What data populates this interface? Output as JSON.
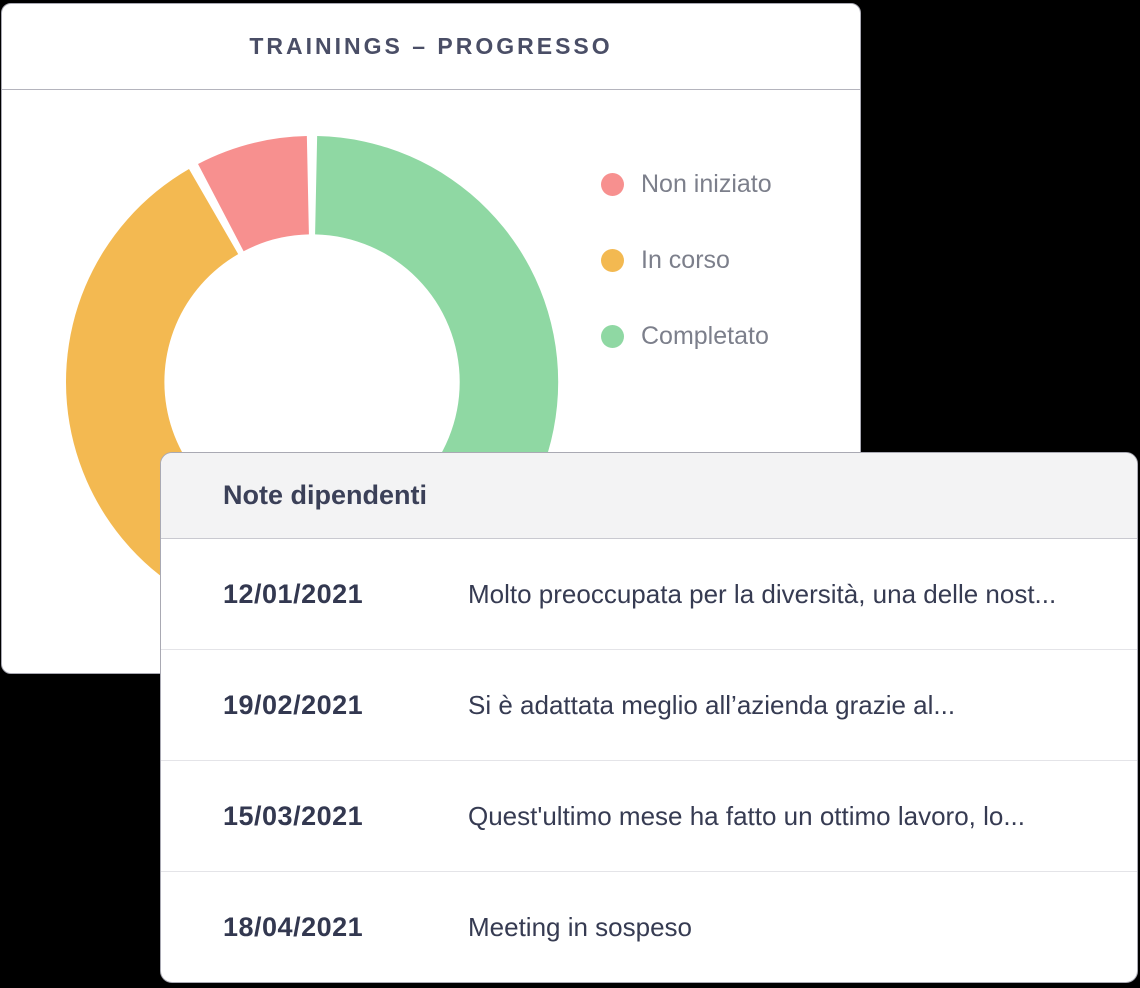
{
  "background_color": "#000000",
  "trainings_card": {
    "title": "TRAININGS – PROGRESSO"
  },
  "chart_data": {
    "type": "pie",
    "subtype": "donut",
    "title": "TRAININGS – PROGRESSO",
    "categories": [
      "Non iniziato",
      "In corso",
      "Completato"
    ],
    "values": [
      8,
      42,
      50
    ],
    "unit": "percent_estimated",
    "colors": [
      "#f7908f",
      "#f3b951",
      "#8fd8a3"
    ],
    "draw_order_clockwise_from_top": [
      2,
      1,
      0
    ],
    "start_angle_deg": 0,
    "segment_gap_deg": 2.4,
    "inner_radius_ratio": 0.6,
    "legend_position": "right"
  },
  "legend": {
    "items": [
      {
        "label": "Non iniziato",
        "color": "#f7908f"
      },
      {
        "label": "In corso",
        "color": "#f3b951"
      },
      {
        "label": "Completato",
        "color": "#8fd8a3"
      }
    ]
  },
  "notes_card": {
    "title": "Note dipendenti",
    "rows": [
      {
        "date": "12/01/2021",
        "note": "Molto preoccupata per la diversità, una delle nost..."
      },
      {
        "date": "19/02/2021",
        "note": "Si è adattata meglio all’azienda grazie al..."
      },
      {
        "date": "15/03/2021",
        "note": "Quest'ultimo mese ha fatto un ottimo lavoro, lo..."
      },
      {
        "date": "18/04/2021",
        "note": "Meeting in sospeso"
      }
    ]
  },
  "colors": {
    "card_background": "#ffffff",
    "card_border": "#a9a9b3",
    "notes_header_background": "#f3f3f4",
    "row_separator": "#e4e4e8",
    "title_text": "#4a4e66",
    "legend_text": "#7c7f8b",
    "date_text": "#333850",
    "note_text": "#363b52"
  }
}
